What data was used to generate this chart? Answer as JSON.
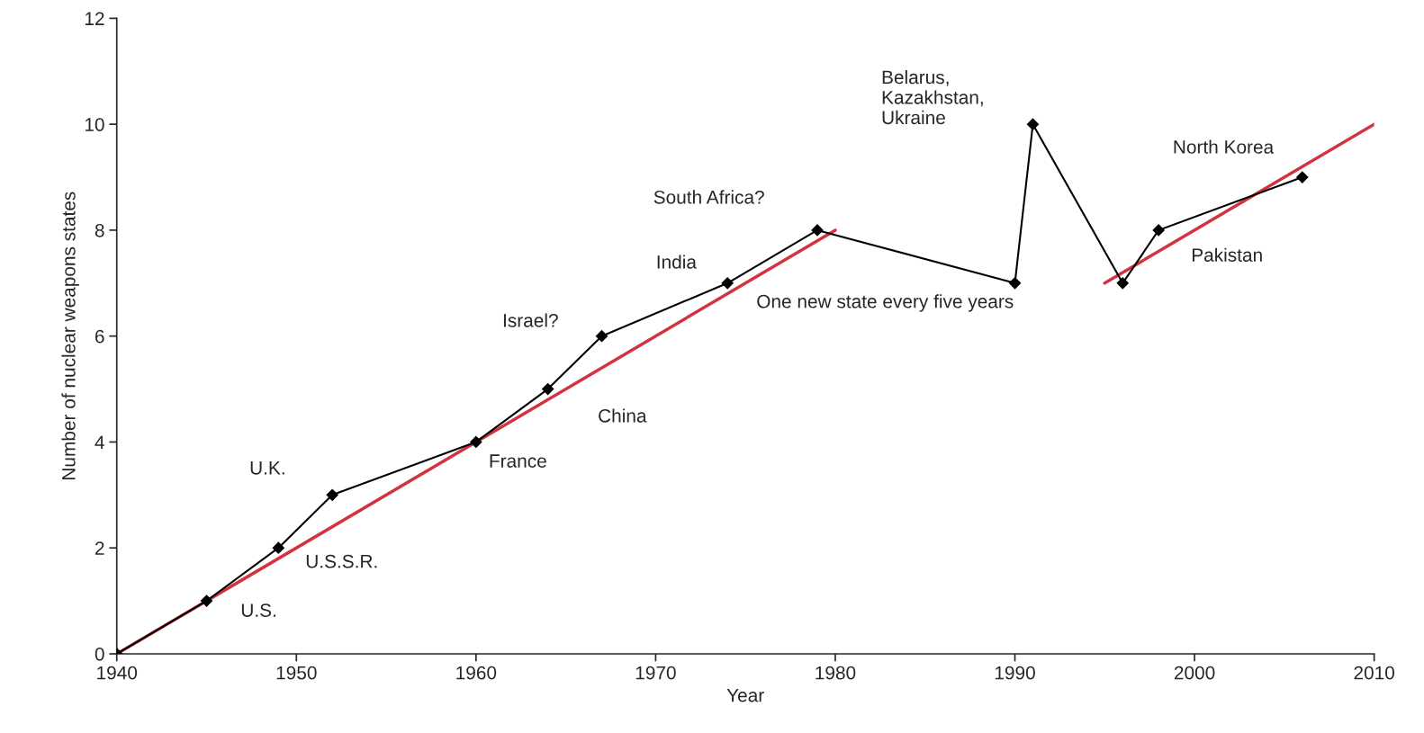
{
  "chart_data": {
    "type": "line",
    "xlabel": "Year",
    "ylabel": "Number of nuclear weapons states",
    "x": [
      1940,
      1945,
      1949,
      1952,
      1960,
      1964,
      1967,
      1974,
      1979,
      1990,
      1991,
      1996,
      1998,
      2006
    ],
    "series": [
      {
        "color": "#000000",
        "values": [
          0,
          1,
          2,
          3,
          4,
          5,
          6,
          7,
          8,
          7,
          10,
          7,
          8,
          9
        ],
        "marker": "diamond"
      },
      {
        "color": "#d2333f",
        "x": [
          1940,
          1980
        ],
        "values": [
          0,
          8
        ],
        "marker": "none"
      },
      {
        "color": "#d2333f",
        "x": [
          1995,
          2010
        ],
        "values": [
          7,
          10
        ],
        "marker": "none"
      }
    ],
    "xlim": [
      1940,
      2010
    ],
    "xticks": [
      1940,
      1950,
      1960,
      1970,
      1980,
      1990,
      2000,
      2010
    ],
    "ylim": [
      0,
      12
    ],
    "yticks": [
      0,
      2,
      4,
      6,
      8,
      10,
      12
    ],
    "grid": false,
    "legend": false,
    "annotations": [
      "U.S.",
      "U.S.S.R.",
      "U.K.",
      "France",
      "China",
      "Israel?",
      "India",
      "South Africa?",
      "Belarus,\nKazakhstan,\nUkraine",
      "North Korea",
      "Pakistan",
      "One new state every five years"
    ]
  }
}
